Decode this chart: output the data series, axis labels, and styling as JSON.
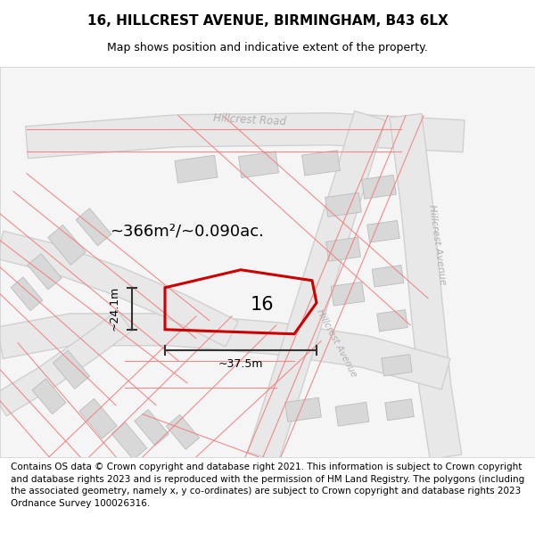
{
  "title": "16, HILLCREST AVENUE, BIRMINGHAM, B43 6LX",
  "subtitle": "Map shows position and indicative extent of the property.",
  "footer": "Contains OS data © Crown copyright and database right 2021. This information is subject to Crown copyright and database rights 2023 and is reproduced with the permission of HM Land Registry. The polygons (including the associated geometry, namely x, y co-ordinates) are subject to Crown copyright and database rights 2023 Ordnance Survey 100026316.",
  "area_label": "~366m²/~0.090ac.",
  "number_label": "16",
  "width_label": "~37.5m",
  "height_label": "~24.1m",
  "road_fill": "#e8e8e8",
  "road_stroke": "#d0d0d0",
  "plot_line_color": "#cc0000",
  "dimension_color": "#333333",
  "road_label_color": "#b0b0b0",
  "cadastral_color": "#f08080",
  "building_fill": "#d8d8d8",
  "building_edge": "#bbbbbb",
  "map_bg": "#f5f5f5",
  "title_fontsize": 11,
  "subtitle_fontsize": 9,
  "footer_fontsize": 7.5
}
